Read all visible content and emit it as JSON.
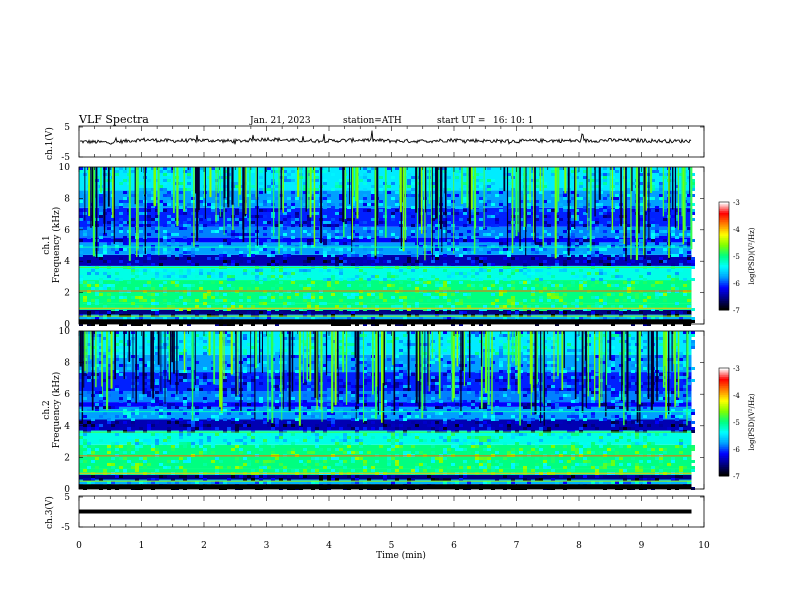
{
  "header": {
    "title": "VLF Spectra",
    "date": "Jan. 21, 2023",
    "station": "station=ATH",
    "start_label": "start UT =",
    "start_time": "16: 10: 1"
  },
  "chart_data": [
    {
      "panel": "ch1-waveform",
      "type": "line",
      "ylabel": "ch.1(V)",
      "ylim": [
        -5,
        5
      ],
      "y_ticks": [
        "5",
        "-5"
      ],
      "x": [
        0.0,
        0.5,
        1.0,
        1.5,
        2.0,
        2.5,
        3.0,
        3.5,
        4.0,
        4.5,
        5.0,
        5.5,
        6.0,
        6.5,
        7.0,
        7.5,
        8.0,
        8.5,
        9.0,
        9.5,
        9.8
      ],
      "values": [
        0.0,
        -0.3,
        0.6,
        0.2,
        0.4,
        0.1,
        0.8,
        0.3,
        0.2,
        0.5,
        0.2,
        0.1,
        0.5,
        0.2,
        0.1,
        0.3,
        0.2,
        0.4,
        0.3,
        0.1,
        0.2
      ]
    },
    {
      "panel": "ch1-spectrogram",
      "type": "heatmap",
      "ylabel": "ch.1\nFrequency (kHz)",
      "ylim": [
        0,
        10
      ],
      "y_ticks": [
        "10",
        "8",
        "6",
        "4",
        "2",
        "0"
      ],
      "colorbar": {
        "label": "log(PSD)(V²/Hz)",
        "range": [
          -7,
          -3
        ],
        "ticks": [
          "-3",
          "-4",
          "-5",
          "-6",
          "-7"
        ]
      }
    },
    {
      "panel": "ch2-spectrogram",
      "type": "heatmap",
      "ylabel": "ch.2\nFrequency (kHz)",
      "ylim": [
        0,
        10
      ],
      "y_ticks": [
        "10",
        "8",
        "6",
        "4",
        "2",
        "0"
      ],
      "colorbar": {
        "label": "log(PSD)(V²/Hz)",
        "range": [
          -7,
          -3
        ],
        "ticks": [
          "-3",
          "-4",
          "-5",
          "-6",
          "-7"
        ]
      }
    },
    {
      "panel": "ch3-waveform",
      "type": "line",
      "ylabel": "ch.3(V)",
      "ylim": [
        -5,
        5
      ],
      "y_ticks": [
        "5",
        "-5"
      ],
      "x": [
        0,
        9.8
      ],
      "values": [
        0,
        0
      ]
    }
  ],
  "x_axis": {
    "label": "Time (min)",
    "ticks": [
      "0",
      "1",
      "2",
      "3",
      "4",
      "5",
      "6",
      "7",
      "8",
      "9",
      "10"
    ],
    "range": [
      0,
      10
    ],
    "data_end": 9.8
  },
  "colors": {
    "scale": [
      "#000000",
      "#000080",
      "#0000ff",
      "#00a0ff",
      "#00ffff",
      "#00ff80",
      "#80ff00",
      "#ffff00",
      "#ff8000",
      "#ff0000",
      "#ffffff"
    ]
  }
}
